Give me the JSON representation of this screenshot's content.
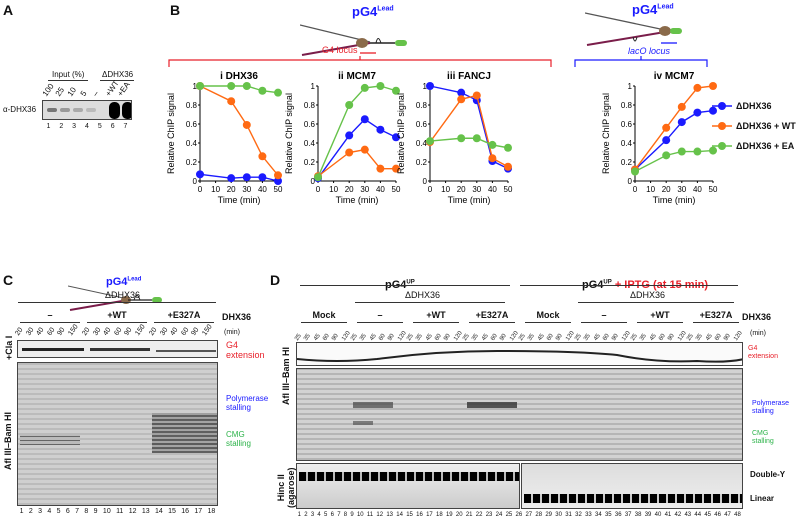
{
  "panels": {
    "a": "A",
    "b": "B",
    "c": "C",
    "d": "D"
  },
  "panel_a": {
    "input_header": "Input (%)",
    "dhx_header": "ΔDHX36",
    "row_label": "α-DHX36",
    "lane_headers": [
      "100",
      "25",
      "10",
      "5",
      "–",
      "+WT",
      "+EA"
    ],
    "lane_numbers": [
      "1",
      "2",
      "3",
      "4",
      "5",
      "6",
      "7"
    ]
  },
  "panel_b": {
    "diagram_left_title": "pG4",
    "diagram_left_sup": "Lead",
    "g4_locus": "G4 locus",
    "diagram_right_title": "pG4",
    "diagram_right_sup": "Lead",
    "laco_locus": "lacO locus",
    "bracket_left_color": "#e8202a",
    "bracket_right_color": "#1a1aff"
  },
  "chart_data": [
    {
      "type": "line",
      "title": "i  DHX36",
      "xlabel": "Time (min)",
      "ylabel": "Relative ChIP signal",
      "xlim": [
        0,
        50
      ],
      "ylim": [
        0,
        1
      ],
      "x": [
        0,
        20,
        30,
        40,
        50
      ],
      "xticks": [
        "0",
        "10",
        "20",
        "30",
        "40",
        "50"
      ],
      "yticks": [
        "0",
        "0.2",
        "0.4",
        "0.6",
        "0.8",
        "1"
      ],
      "series": [
        {
          "name": "ΔDHX36",
          "color": "#1a1aff",
          "values": [
            0.07,
            0.03,
            0.04,
            0.04,
            0.0
          ]
        },
        {
          "name": "ΔDHX36 + WT",
          "color": "#ff6a13",
          "values": [
            1.0,
            0.84,
            0.59,
            0.26,
            0.06
          ]
        },
        {
          "name": "ΔDHX36 + EA",
          "color": "#66c24a",
          "values": [
            1.0,
            1.0,
            1.0,
            0.95,
            0.93
          ]
        }
      ]
    },
    {
      "type": "line",
      "title": "ii  MCM7",
      "xlabel": "Time (min)",
      "ylabel": "Relative ChIP signal",
      "xlim": [
        0,
        50
      ],
      "ylim": [
        0,
        1
      ],
      "x": [
        0,
        20,
        30,
        40,
        50
      ],
      "xticks": [
        "0",
        "10",
        "20",
        "30",
        "40",
        "50"
      ],
      "yticks": [
        "0",
        "0.2",
        "0.4",
        "0.6",
        "0.8",
        "1"
      ],
      "series": [
        {
          "name": "ΔDHX36",
          "color": "#1a1aff",
          "values": [
            0.03,
            0.48,
            0.65,
            0.54,
            0.46
          ]
        },
        {
          "name": "ΔDHX36 + WT",
          "color": "#ff6a13",
          "values": [
            0.05,
            0.3,
            0.33,
            0.13,
            0.13
          ]
        },
        {
          "name": "ΔDHX36 + EA",
          "color": "#66c24a",
          "values": [
            0.04,
            0.8,
            0.98,
            1.0,
            0.95
          ]
        }
      ]
    },
    {
      "type": "line",
      "title": "iii  FANCJ",
      "xlabel": "Time (min)",
      "ylabel": "Relative ChIP signal",
      "xlim": [
        0,
        50
      ],
      "ylim": [
        0,
        1
      ],
      "x": [
        0,
        20,
        30,
        40,
        50
      ],
      "xticks": [
        "0",
        "10",
        "20",
        "30",
        "40",
        "50"
      ],
      "yticks": [
        "0",
        "0.2",
        "0.4",
        "0.6",
        "0.8",
        "1"
      ],
      "series": [
        {
          "name": "ΔDHX36",
          "color": "#1a1aff",
          "values": [
            1.0,
            0.93,
            0.85,
            0.21,
            0.13
          ]
        },
        {
          "name": "ΔDHX36 + WT",
          "color": "#ff6a13",
          "values": [
            0.41,
            0.86,
            0.9,
            0.24,
            0.15
          ]
        },
        {
          "name": "ΔDHX36 + EA",
          "color": "#66c24a",
          "values": [
            0.42,
            0.45,
            0.45,
            0.38,
            0.35
          ]
        }
      ]
    },
    {
      "type": "line",
      "title": "iv  MCM7",
      "xlabel": "Time (min)",
      "ylabel": "Relative ChIP signal",
      "xlim": [
        0,
        50
      ],
      "ylim": [
        0,
        1
      ],
      "x": [
        0,
        20,
        30,
        40,
        50
      ],
      "xticks": [
        "0",
        "10",
        "20",
        "30",
        "40",
        "50"
      ],
      "yticks": [
        "0",
        "0.2",
        "0.4",
        "0.6",
        "0.8",
        "1"
      ],
      "legend": "right",
      "series": [
        {
          "name": "ΔDHX36",
          "color": "#1a1aff",
          "values": [
            0.12,
            0.43,
            0.62,
            0.72,
            0.74
          ]
        },
        {
          "name": "ΔDHX36 + WT",
          "color": "#ff6a13",
          "values": [
            0.12,
            0.56,
            0.78,
            0.98,
            1.0
          ]
        },
        {
          "name": "ΔDHX36 + EA",
          "color": "#66c24a",
          "values": [
            0.1,
            0.27,
            0.31,
            0.31,
            0.32
          ]
        }
      ]
    }
  ],
  "panel_c": {
    "title": "pG4",
    "title_sup": "Lead",
    "dhx_header": "ΔDHX36",
    "row_header": "DHX36",
    "groups": [
      "–",
      "+WT",
      "+E327A"
    ],
    "times": [
      "20",
      "30",
      "40",
      "60",
      "90",
      "150"
    ],
    "time_unit": "(min)",
    "gel_top_label": "+Cla I",
    "gel_bottom_label": "Afl III–Bam HI",
    "g4_extension": "G4\nextension",
    "polymerase_stalling": "Polymerase\nstalling",
    "cmg_stalling": "CMG\nstalling",
    "lane_count": 18
  },
  "panel_d": {
    "left_title": "pG4",
    "left_sup": "UP",
    "right_title": "pG4",
    "right_sup": "UP",
    "right_title_extra": "+ IPTG (at 15 min)",
    "dhx_header": "ΔDHX36",
    "row_header": "DHX36",
    "groups": [
      "Mock",
      "–",
      "+WT",
      "+E327A"
    ],
    "times": [
      "25",
      "35",
      "45",
      "60",
      "90",
      "120"
    ],
    "time_unit": "(min)",
    "gel1_label": "Afl III–Bam HI",
    "gel3_label": "Hinc II\n(agarose)",
    "g4_extension": "G4\nextension",
    "polymerase_stalling": "Polymerase\nstalling",
    "cmg_stalling": "CMG\nstalling",
    "double_y": "Double-Y",
    "linear": "Linear",
    "lane_count": 48
  },
  "colors": {
    "red": "#e8202a",
    "blue": "#1a1aff",
    "green": "#2db34a"
  }
}
